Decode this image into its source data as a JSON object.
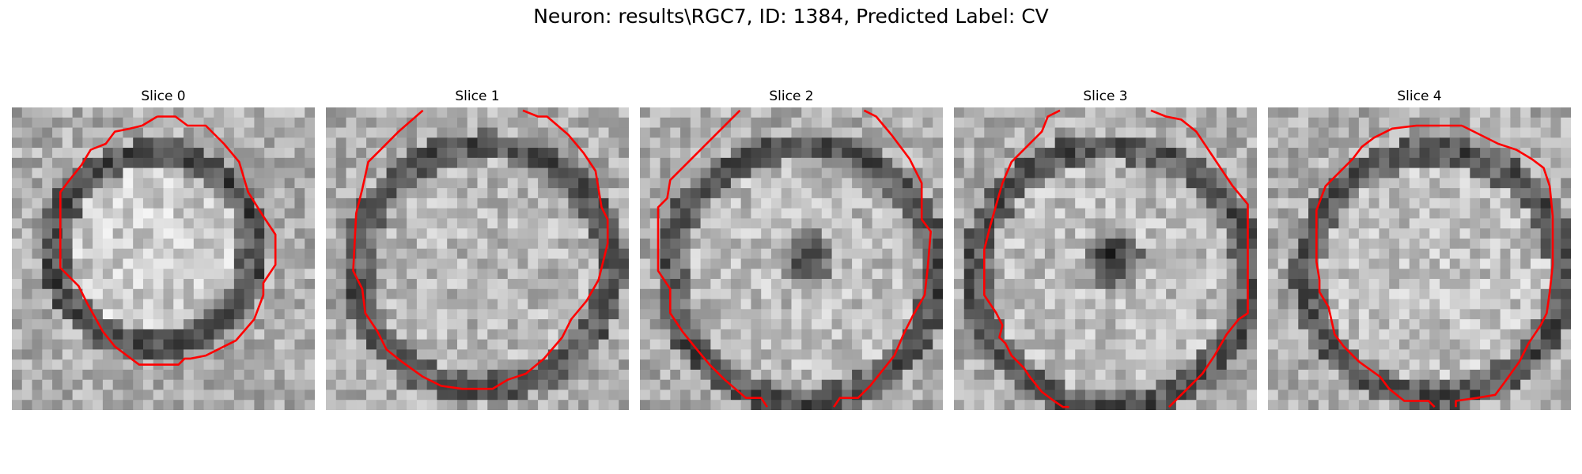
{
  "figure": {
    "title": "Neuron: results\\RGC7, ID: 1384, Predicted Label: CV",
    "contour_color": "#ff0000",
    "panels": [
      {
        "title": "Slice 0",
        "contour_color": "#ff0000"
      },
      {
        "title": "Slice 1",
        "contour_color": "#ff0000"
      },
      {
        "title": "Slice 2",
        "contour_color": "#ff0000"
      },
      {
        "title": "Slice 3",
        "contour_color": "#ff0000"
      },
      {
        "title": "Slice 4",
        "contour_color": "#ff0000"
      }
    ]
  }
}
